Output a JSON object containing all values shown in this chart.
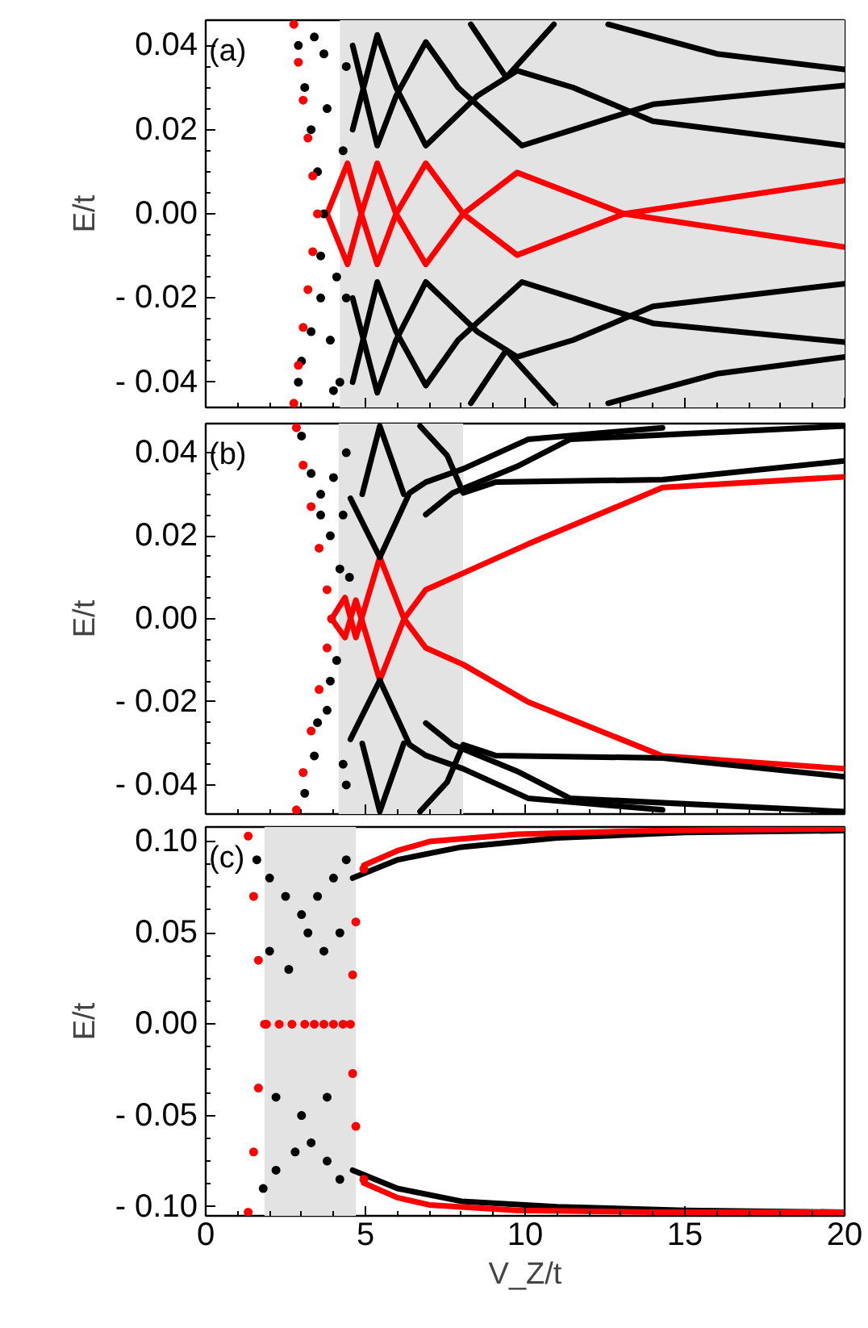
{
  "chart_data": [
    {
      "type": "line",
      "ylabel": "E/t",
      "annotations": [
        "(a)"
      ],
      "xlim": [
        0,
        20
      ],
      "xticks": [
        0,
        5,
        10,
        15,
        20
      ],
      "ylim": [
        -0.046,
        0.046
      ],
      "yticks": [
        {
          "value": -0.04,
          "label": "- 0.04"
        },
        {
          "value": -0.02,
          "label": "- 0.02"
        },
        {
          "value": 0,
          "label": "0.00"
        },
        {
          "value": 0.02,
          "label": "0.02"
        },
        {
          "value": 0.04,
          "label": "0.04"
        }
      ],
      "tick_labels": "y",
      "grid": false,
      "bands": [
        {
          "axis": "x",
          "from": 4.2,
          "to": 20,
          "color": "#e3e3e3"
        }
      ],
      "series": [
        {
          "type": "line",
          "color": "#ff0000",
          "x": [
            3.8,
            4.44,
            4.87,
            5.37,
            5.96,
            6.89,
            8.06,
            9.75,
            13.1,
            20
          ],
          "values": [
            0,
            0.012,
            0,
            -0.012,
            0,
            0.012,
            0,
            -0.0098,
            0,
            0.0079
          ]
        },
        {
          "type": "line",
          "color": "#ff0000",
          "x": [
            3.8,
            4.44,
            4.87,
            5.37,
            5.96,
            6.89,
            8.06,
            9.75,
            13.1,
            20
          ],
          "values": [
            0,
            -0.012,
            0,
            0.012,
            0,
            -0.012,
            0,
            0.0098,
            0,
            -0.0079
          ]
        },
        {
          "type": "line",
          "color": "#000000",
          "x": [
            4.6,
            5.37,
            5.96,
            6.89,
            7.9,
            9.9,
            11.5,
            14,
            20
          ],
          "values": [
            0.04,
            0.0162,
            0.028,
            0.0408,
            0.03,
            0.0162,
            0.02,
            0.026,
            0.0305
          ]
        },
        {
          "type": "line",
          "color": "#000000",
          "x": [
            4.6,
            5.37,
            5.96,
            6.89,
            8.5,
            9.75,
            11.5,
            14,
            20
          ],
          "values": [
            0.02,
            0.0425,
            0.03,
            0.0162,
            0.028,
            0.034,
            0.03,
            0.022,
            0.0162
          ]
        },
        {
          "type": "line",
          "color": "#000000",
          "x": [
            8.3,
            9.41,
            10.9
          ],
          "values": [
            0.045,
            0.0324,
            0.045
          ]
        },
        {
          "type": "line",
          "color": "#000000",
          "x": [
            12.6,
            16,
            20
          ],
          "values": [
            0.045,
            0.038,
            0.0343
          ]
        },
        {
          "type": "line",
          "color": "#000000",
          "x": [
            4.6,
            5.37,
            5.96,
            6.89,
            7.9,
            9.9,
            11.5,
            14,
            20
          ],
          "values": [
            -0.04,
            -0.0162,
            -0.028,
            -0.0408,
            -0.03,
            -0.0162,
            -0.02,
            -0.026,
            -0.0305
          ]
        },
        {
          "type": "line",
          "color": "#000000",
          "x": [
            4.6,
            5.37,
            5.96,
            6.89,
            8.5,
            9.75,
            11.5,
            14,
            20
          ],
          "values": [
            -0.02,
            -0.0425,
            -0.03,
            -0.0162,
            -0.028,
            -0.034,
            -0.03,
            -0.022,
            -0.0166
          ]
        },
        {
          "type": "line",
          "color": "#000000",
          "x": [
            8.3,
            9.41,
            10.9
          ],
          "values": [
            -0.045,
            -0.0324,
            -0.045
          ]
        },
        {
          "type": "line",
          "color": "#000000",
          "x": [
            12.6,
            16,
            20
          ],
          "values": [
            -0.045,
            -0.038,
            -0.034
          ]
        },
        {
          "type": "scatter",
          "color": "#000000",
          "x": [
            2.9,
            3.1,
            3.3,
            3.5,
            3.6,
            3.6,
            3.9,
            4.2,
            4.4,
            3.0,
            3.4,
            3.8,
            4.1,
            4.3,
            3.3,
            3.7,
            4.0,
            2.9,
            3.7,
            4.4
          ],
          "values": [
            0.04,
            0.03,
            0.02,
            0.01,
            -0.01,
            -0.02,
            -0.03,
            -0.04,
            0.035,
            -0.035,
            0.042,
            0.025,
            -0.015,
            0.015,
            -0.028,
            0.038,
            -0.042,
            -0.04,
            0.0,
            -0.02
          ]
        },
        {
          "type": "scatter",
          "color": "#ff0000",
          "x": [
            2.76,
            2.9,
            3.05,
            3.2,
            3.35,
            3.5,
            3.35,
            3.2,
            3.05,
            2.9,
            2.76
          ],
          "values": [
            0.045,
            0.036,
            0.027,
            0.018,
            0.009,
            0,
            -0.009,
            -0.018,
            -0.027,
            -0.036,
            -0.045
          ]
        }
      ]
    },
    {
      "type": "line",
      "ylabel": "E/t",
      "annotations": [
        "(b)"
      ],
      "xlim": [
        0,
        20
      ],
      "xticks": [
        0,
        5,
        10,
        15,
        20
      ],
      "ylim": [
        -0.047,
        0.047
      ],
      "yticks": [
        {
          "value": -0.04,
          "label": "- 0.04"
        },
        {
          "value": -0.02,
          "label": "- 0.02"
        },
        {
          "value": 0,
          "label": "0.00"
        },
        {
          "value": 0.02,
          "label": "0.02"
        },
        {
          "value": 0.04,
          "label": "0.04"
        }
      ],
      "tick_labels": "y",
      "grid": false,
      "bands": [
        {
          "axis": "x",
          "from": 4.16,
          "to": 8.06,
          "color": "#e3e3e3"
        }
      ],
      "series": [
        {
          "type": "line",
          "color": "#ff0000",
          "x": [
            3.94,
            4.36,
            4.7,
            5.45,
            6.21,
            6.89,
            8.06,
            10.09,
            14.3,
            20
          ],
          "values": [
            0,
            0.0051,
            -0.0045,
            0.0148,
            0,
            0.007,
            0.011,
            0.018,
            0.0316,
            0.0342
          ]
        },
        {
          "type": "line",
          "color": "#ff0000",
          "x": [
            3.94,
            4.36,
            4.7,
            5.45,
            6.21,
            6.89,
            8.06,
            10.09,
            14.3,
            20
          ],
          "values": [
            0,
            -0.0045,
            0.0045,
            -0.0148,
            0,
            -0.007,
            -0.011,
            -0.02,
            -0.033,
            -0.0361
          ]
        },
        {
          "type": "line",
          "color": "#000000",
          "x": [
            5.45,
            6.38,
            6.89,
            8.06,
            10.09,
            14.3
          ],
          "values": [
            0.0148,
            0.0303,
            0.0329,
            0.0361,
            0.0432,
            0.046
          ]
        },
        {
          "type": "line",
          "color": "#000000",
          "x": [
            6.71,
            7.56,
            8.06,
            9.07,
            14.3,
            20
          ],
          "values": [
            0.0464,
            0.0393,
            0.0303,
            0.0329,
            0.0335,
            0.038
          ]
        },
        {
          "type": "line",
          "color": "#000000",
          "x": [
            6.89,
            7.73,
            9.75,
            11.4,
            20
          ],
          "values": [
            0.0251,
            0.0303,
            0.0367,
            0.0432,
            0.0464
          ]
        },
        {
          "type": "line",
          "color": "#000000",
          "x": [
            4.53,
            5.45
          ],
          "values": [
            0.029,
            0.0148
          ]
        },
        {
          "type": "line",
          "color": "#000000",
          "x": [
            4.9,
            5.45,
            6.2
          ],
          "values": [
            0.03,
            0.0464,
            0.03
          ]
        },
        {
          "type": "line",
          "color": "#000000",
          "x": [
            5.45,
            6.38,
            6.89,
            8.06,
            10.09,
            14.3
          ],
          "values": [
            -0.0148,
            -0.0303,
            -0.0329,
            -0.0361,
            -0.0432,
            -0.046
          ]
        },
        {
          "type": "line",
          "color": "#000000",
          "x": [
            6.71,
            7.56,
            8.06,
            9.07,
            14.3,
            20
          ],
          "values": [
            -0.0464,
            -0.0393,
            -0.0303,
            -0.0329,
            -0.0335,
            -0.038
          ]
        },
        {
          "type": "line",
          "color": "#000000",
          "x": [
            6.89,
            7.73,
            9.75,
            11.4,
            20
          ],
          "values": [
            -0.0251,
            -0.0303,
            -0.0367,
            -0.0432,
            -0.0464
          ]
        },
        {
          "type": "line",
          "color": "#000000",
          "x": [
            4.53,
            5.45
          ],
          "values": [
            -0.029,
            -0.0148
          ]
        },
        {
          "type": "line",
          "color": "#000000",
          "x": [
            4.9,
            5.45,
            6.2
          ],
          "values": [
            -0.03,
            -0.0464,
            -0.03
          ]
        },
        {
          "type": "scatter",
          "color": "#000000",
          "x": [
            3.0,
            3.3,
            3.6,
            3.9,
            4.2,
            4.4,
            3.5,
            3.9,
            4.3,
            3.1,
            3.4,
            3.8,
            4.1,
            4.4,
            3.6,
            4.0,
            4.3,
            4.5
          ],
          "values": [
            0.044,
            0.035,
            0.03,
            0.02,
            0.012,
            0.04,
            -0.025,
            -0.015,
            -0.035,
            -0.042,
            -0.033,
            -0.022,
            -0.01,
            -0.04,
            0.025,
            0.034,
            0.025,
            0.01
          ]
        },
        {
          "type": "scatter",
          "color": "#ff0000",
          "x": [
            2.84,
            3.05,
            3.3,
            3.55,
            3.8,
            3.94,
            3.8,
            3.55,
            3.3,
            3.05,
            2.84
          ],
          "values": [
            0.046,
            0.037,
            0.027,
            0.017,
            0.007,
            0,
            -0.007,
            -0.017,
            -0.027,
            -0.037,
            -0.046
          ]
        }
      ]
    },
    {
      "type": "line",
      "ylabel": "E/t",
      "xlabel": "V_Z/t",
      "annotations": [
        "(c)"
      ],
      "xlim": [
        0,
        20
      ],
      "xticks": [
        0,
        5,
        10,
        15,
        20
      ],
      "ylim": [
        -0.105,
        0.108
      ],
      "yticks": [
        {
          "value": -0.1,
          "label": "- 0.10"
        },
        {
          "value": -0.05,
          "label": "- 0.05"
        },
        {
          "value": 0,
          "label": "0.00"
        },
        {
          "value": 0.05,
          "label": "0.05"
        },
        {
          "value": 0.1,
          "label": "0.10"
        }
      ],
      "grid": false,
      "bands": [
        {
          "axis": "x",
          "from": 1.84,
          "to": 4.7,
          "color": "#e3e3e3"
        }
      ],
      "series": [
        {
          "type": "line",
          "color": "#000000",
          "x": [
            4.6,
            6,
            8,
            11,
            15,
            20
          ],
          "values": [
            0.08,
            0.09,
            0.097,
            0.102,
            0.105,
            0.106
          ]
        },
        {
          "type": "line",
          "color": "#000000",
          "x": [
            4.6,
            6,
            8,
            11,
            15,
            20
          ],
          "values": [
            -0.08,
            -0.09,
            -0.097,
            -0.1,
            -0.102,
            -0.103
          ]
        },
        {
          "type": "line",
          "color": "#ff0000",
          "x": [
            4.95,
            6,
            7,
            9.75,
            14,
            20
          ],
          "values": [
            0.087,
            0.095,
            0.1,
            0.104,
            0.106,
            0.107
          ]
        },
        {
          "type": "line",
          "color": "#ff0000",
          "x": [
            4.95,
            6,
            7,
            9.75,
            14,
            20
          ],
          "values": [
            -0.087,
            -0.095,
            -0.099,
            -0.102,
            -0.103,
            -0.103
          ]
        },
        {
          "type": "scatter",
          "color": "#000000",
          "x": [
            1.6,
            2.0,
            2.5,
            3.0,
            3.5,
            4.0,
            4.4,
            1.8,
            2.2,
            2.8,
            3.3,
            3.8,
            4.2,
            2.0,
            2.6,
            3.2,
            3.7,
            4.2,
            2.2,
            3.0,
            3.8
          ],
          "values": [
            0.09,
            0.08,
            0.07,
            0.06,
            0.07,
            0.08,
            0.09,
            -0.09,
            -0.08,
            -0.07,
            -0.065,
            -0.075,
            -0.085,
            0.04,
            0.03,
            0.05,
            0.04,
            0.05,
            -0.04,
            -0.05,
            -0.04
          ]
        },
        {
          "type": "scatter",
          "color": "#ff0000",
          "x": [
            1.33,
            1.5,
            1.65,
            1.84,
            1.65,
            1.5,
            1.33,
            4.95,
            4.7,
            4.6,
            4.53,
            4.6,
            4.7,
            4.95
          ],
          "values": [
            0.103,
            0.07,
            0.035,
            0,
            -0.035,
            -0.07,
            -0.103,
            0.085,
            0.056,
            0.027,
            0,
            -0.027,
            -0.056,
            -0.085
          ]
        },
        {
          "type": "scatter",
          "color": "#ff0000",
          "x": [
            1.9,
            2.3,
            2.7,
            3.1,
            3.4,
            3.7,
            4.0,
            4.3
          ],
          "values": [
            0,
            0,
            0,
            0,
            0,
            0,
            0,
            0
          ]
        }
      ]
    }
  ]
}
